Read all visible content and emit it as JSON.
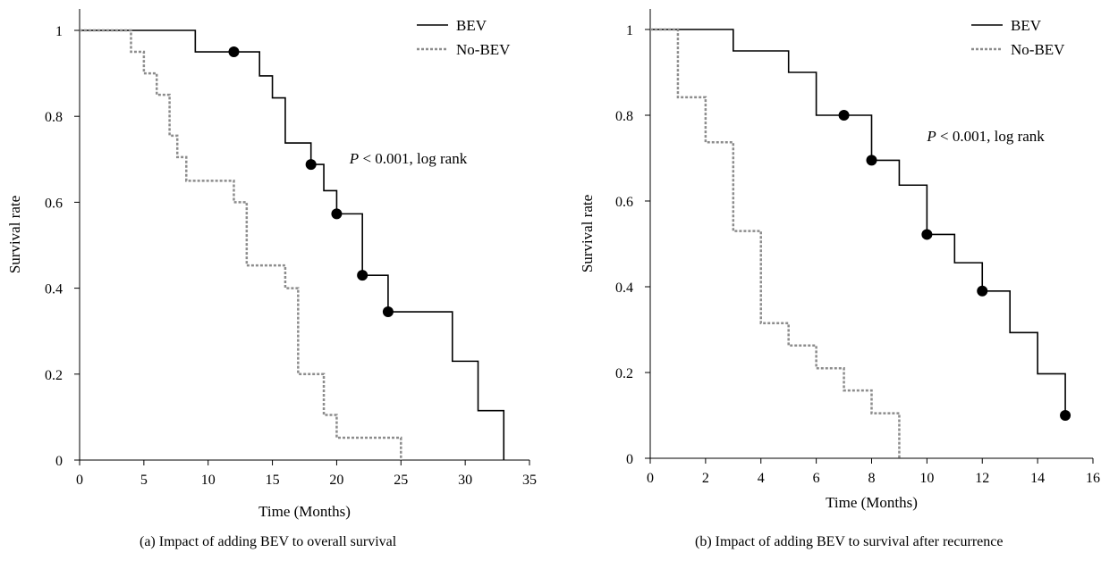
{
  "chart_data": [
    {
      "type": "line",
      "subtype": "kaplan-meier",
      "caption": "(a)  Impact of adding BEV to overall survival",
      "xlabel": "Time (Months)",
      "ylabel": "Survival rate",
      "xlim": [
        0,
        35
      ],
      "ylim": [
        0,
        1
      ],
      "xticks": [
        0,
        5,
        10,
        15,
        20,
        25,
        30,
        35
      ],
      "yticks": [
        0,
        0.2,
        0.4,
        0.6,
        0.8,
        1
      ],
      "ytick_labels": [
        "0",
        "0.2",
        "0.4",
        "0.6",
        "0.8",
        "1"
      ],
      "annotation": {
        "italic": "P",
        "text": " < 0.001, log rank",
        "x": 21,
        "y": 0.69
      },
      "legend": {
        "position": "top-right"
      },
      "series": [
        {
          "name": "BEV",
          "style": "solid",
          "color": "#000000",
          "steps": [
            [
              0,
              1
            ],
            [
              9,
              0.95
            ],
            [
              14,
              0.894
            ],
            [
              15,
              0.843
            ],
            [
              16,
              0.738
            ],
            [
              18,
              0.688
            ],
            [
              19,
              0.627
            ],
            [
              20,
              0.573
            ],
            [
              22,
              0.43
            ],
            [
              24,
              0.345
            ],
            [
              29,
              0.23
            ],
            [
              31,
              0.115
            ],
            [
              33,
              0
            ]
          ],
          "censored": [
            [
              12,
              0.95
            ],
            [
              18,
              0.688
            ],
            [
              20,
              0.573
            ],
            [
              22,
              0.43
            ],
            [
              24,
              0.345
            ]
          ]
        },
        {
          "name": "No-BEV",
          "style": "dashed",
          "color": "#8c8c8c",
          "steps": [
            [
              0,
              1
            ],
            [
              4,
              0.95
            ],
            [
              5,
              0.9
            ],
            [
              6,
              0.85
            ],
            [
              7,
              0.755
            ],
            [
              7.6,
              0.705
            ],
            [
              8.3,
              0.65
            ],
            [
              12,
              0.6
            ],
            [
              13,
              0.453
            ],
            [
              16,
              0.4
            ],
            [
              17,
              0.2
            ],
            [
              19,
              0.105
            ],
            [
              20,
              0.052
            ],
            [
              25,
              0
            ]
          ],
          "censored": []
        }
      ]
    },
    {
      "type": "line",
      "subtype": "kaplan-meier",
      "caption": "(b)  Impact of adding BEV to survival after recurrence",
      "xlabel": "Time (Months)",
      "ylabel": "Survival rate",
      "xlim": [
        0,
        16
      ],
      "ylim": [
        0,
        1
      ],
      "xticks": [
        0,
        2,
        4,
        6,
        8,
        10,
        12,
        14,
        16
      ],
      "yticks": [
        0,
        0.2,
        0.4,
        0.6,
        0.8,
        1
      ],
      "ytick_labels": [
        "0",
        "0.2",
        "0.4",
        "0.6",
        "0.8",
        "1"
      ],
      "annotation": {
        "italic": "P",
        "text": " < 0.001, log rank",
        "x": 10,
        "y": 0.74
      },
      "legend": {
        "position": "top-right"
      },
      "series": [
        {
          "name": "BEV",
          "style": "solid",
          "color": "#000000",
          "steps": [
            [
              0,
              1
            ],
            [
              3,
              0.95
            ],
            [
              5,
              0.9
            ],
            [
              6,
              0.8
            ],
            [
              8,
              0.695
            ],
            [
              9,
              0.637
            ],
            [
              10,
              0.522
            ],
            [
              11,
              0.456
            ],
            [
              12,
              0.39
            ],
            [
              13,
              0.293
            ],
            [
              14,
              0.197
            ],
            [
              15,
              0.1
            ]
          ],
          "censored": [
            [
              7,
              0.8
            ],
            [
              8,
              0.695
            ],
            [
              10,
              0.522
            ],
            [
              12,
              0.39
            ],
            [
              15,
              0.1
            ]
          ]
        },
        {
          "name": "No-BEV",
          "style": "dashed",
          "color": "#8c8c8c",
          "steps": [
            [
              0,
              1
            ],
            [
              1,
              0.842
            ],
            [
              2,
              0.737
            ],
            [
              3,
              0.53
            ],
            [
              4,
              0.315
            ],
            [
              5,
              0.263
            ],
            [
              6,
              0.21
            ],
            [
              7,
              0.158
            ],
            [
              8,
              0.105
            ],
            [
              9,
              0
            ]
          ],
          "censored": []
        }
      ]
    }
  ]
}
